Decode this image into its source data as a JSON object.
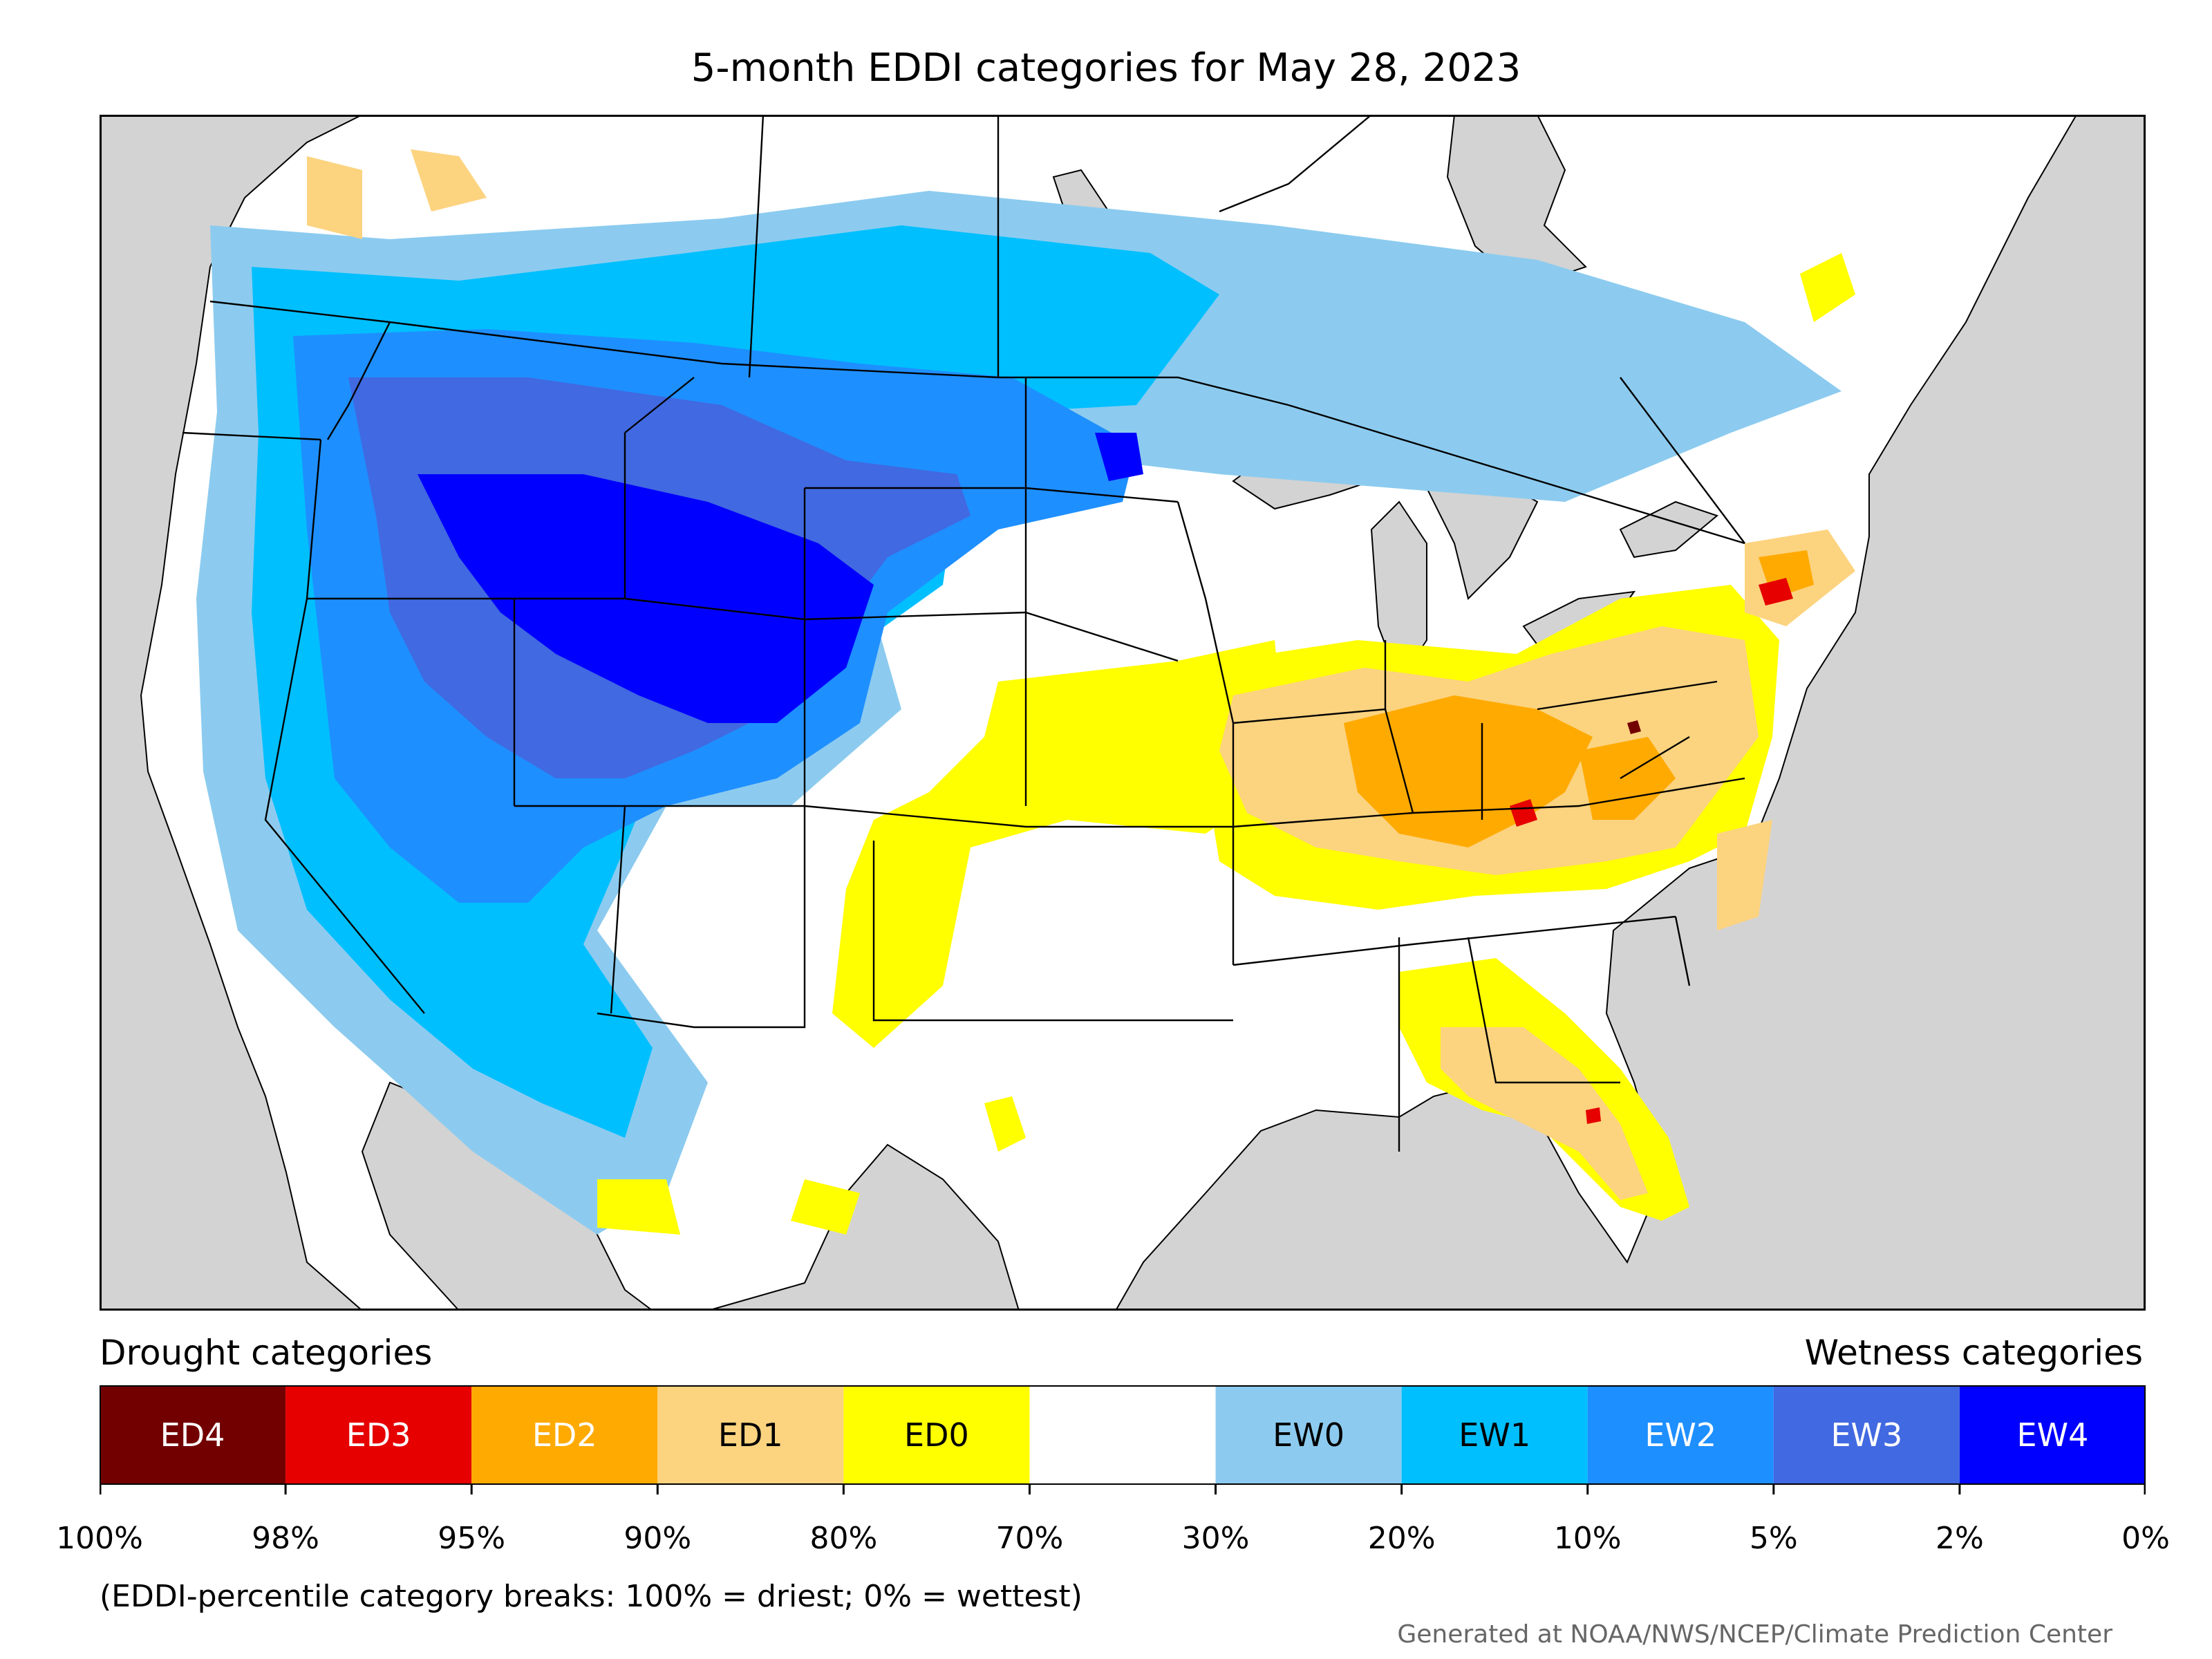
{
  "title": "5-month EDDI categories for May 28, 2023",
  "legend": {
    "drought_heading": "Drought categories",
    "wetness_heading": "Wetness categories",
    "categories": [
      {
        "label": "ED4",
        "color": "#730000",
        "text_color": "#ffffff"
      },
      {
        "label": "ED3",
        "color": "#e60000",
        "text_color": "#ffffff"
      },
      {
        "label": "ED2",
        "color": "#ffaa00",
        "text_color": "#ffffff"
      },
      {
        "label": "ED1",
        "color": "#fcd37f",
        "text_color": "#000000"
      },
      {
        "label": "ED0",
        "color": "#ffff00",
        "text_color": "#000000"
      },
      {
        "label": "",
        "color": "#ffffff",
        "text_color": "#000000"
      },
      {
        "label": "EW0",
        "color": "#8ccbef",
        "text_color": "#000000"
      },
      {
        "label": "EW1",
        "color": "#00bfff",
        "text_color": "#000000"
      },
      {
        "label": "EW2",
        "color": "#1e8fff",
        "text_color": "#ffffff"
      },
      {
        "label": "EW3",
        "color": "#4169e1",
        "text_color": "#ffffff"
      },
      {
        "label": "EW4",
        "color": "#0000ff",
        "text_color": "#ffffff"
      }
    ],
    "tick_labels": [
      "100%",
      "98%",
      "95%",
      "90%",
      "80%",
      "70%",
      "30%",
      "20%",
      "10%",
      "5%",
      "2%",
      "0%"
    ]
  },
  "footnote": "(EDDI-percentile category breaks: 100% = driest; 0% = wettest)",
  "credit": "Generated at NOAA/NWS/NCEP/Climate Prediction Center",
  "colors": {
    "ocean": "#d3d3d3",
    "land": "#ffffff",
    "lakes": "#d3d3d3",
    "borders": "#000000"
  }
}
